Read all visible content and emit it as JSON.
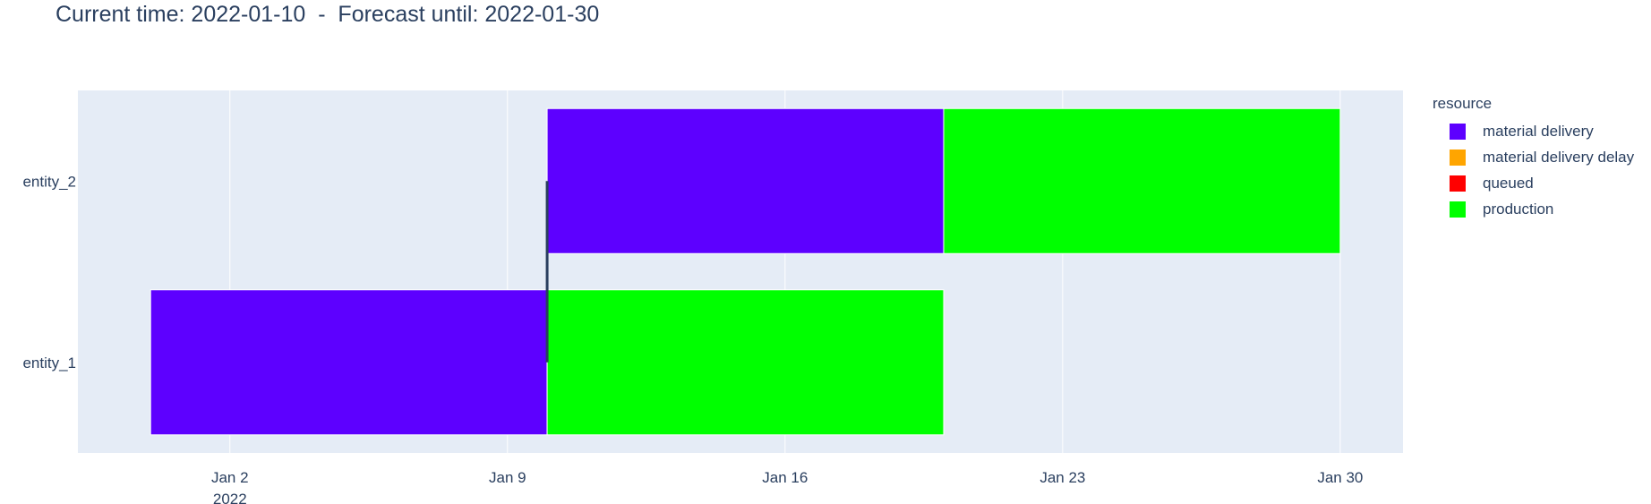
{
  "chart_title": "Current time: 2022-01-10  -  Forecast until: 2022-01-30",
  "colors": {
    "plot_bg": "#e5ecf6",
    "grid": "#ffffff",
    "text": "#2a3f5f",
    "marker_line": "#2a3f5f"
  },
  "chart_data": {
    "type": "gantt",
    "title": "Current time: 2022-01-10  -  Forecast until: 2022-01-30",
    "x_axis": {
      "type": "date",
      "range": [
        "2021-12-29T04:00",
        "2022-01-31T14:00"
      ],
      "ticks": [
        {
          "date": "2022-01-02",
          "label": "Jan 2",
          "sublabel": "2022"
        },
        {
          "date": "2022-01-09",
          "label": "Jan 9",
          "sublabel": ""
        },
        {
          "date": "2022-01-16",
          "label": "Jan 16",
          "sublabel": ""
        },
        {
          "date": "2022-01-23",
          "label": "Jan 23",
          "sublabel": ""
        },
        {
          "date": "2022-01-30",
          "label": "Jan 30",
          "sublabel": ""
        }
      ],
      "grid": true
    },
    "y_axis": {
      "categories": [
        "entity_2",
        "entity_1"
      ]
    },
    "tasks": [
      {
        "entity": "entity_1",
        "resource": "material delivery",
        "start": "2021-12-31",
        "end": "2022-01-10"
      },
      {
        "entity": "entity_1",
        "resource": "production",
        "start": "2022-01-10",
        "end": "2022-01-20"
      },
      {
        "entity": "entity_2",
        "resource": "material delivery",
        "start": "2022-01-10",
        "end": "2022-01-20"
      },
      {
        "entity": "entity_2",
        "resource": "production",
        "start": "2022-01-20",
        "end": "2022-01-30"
      }
    ],
    "current_time_marker": {
      "date": "2022-01-10",
      "from": "entity_1",
      "to": "entity_2"
    },
    "legend": {
      "title": "resource",
      "placement": "right",
      "items": [
        {
          "label": "material delivery",
          "color": "#5d00ff"
        },
        {
          "label": "material delivery delay",
          "color": "#ffa500"
        },
        {
          "label": "queued",
          "color": "#ff0000"
        },
        {
          "label": "production",
          "color": "#00ff00"
        }
      ]
    }
  }
}
